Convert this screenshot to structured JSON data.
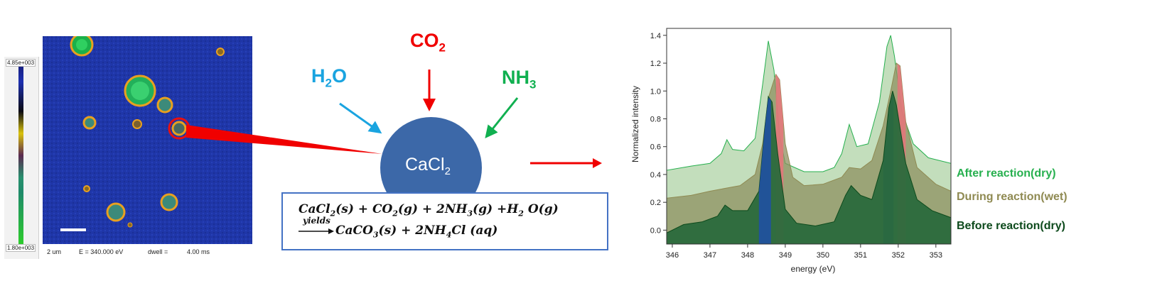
{
  "microscope": {
    "colorbar_max": "4.85e+003",
    "colorbar_min": "1.80e+003",
    "scale_text": "2 um",
    "energy_text": "E =   340.000 eV",
    "dwell_label": "dwell =",
    "dwell_value": "4.00 ms"
  },
  "reaction": {
    "co2": {
      "base": "CO",
      "sub": "2"
    },
    "h2o": {
      "base": "H",
      "sub": "2",
      "tail": "O"
    },
    "nh3": {
      "base": "NH",
      "sub": "3"
    },
    "particle": {
      "base": "CaCl",
      "sub": "2"
    },
    "colors": {
      "co2": "#f00000",
      "h2o": "#1aa4e0",
      "nh3": "#10b050",
      "particle": "#3c68a8",
      "box_border": "#4472c4"
    },
    "equation_line1": {
      "p1": "CaCl",
      "s1": "2",
      "p2": "(s) + CO",
      "s2": "2",
      "p3": "(g) + 2NH",
      "s3": "3",
      "p4": "(g) +H",
      "s4": "2",
      "p5": " O(g)"
    },
    "equation_over": "yields",
    "equation_line2": {
      "p1": "CaCO",
      "s1": "3",
      "p2": "(s) + 2NH",
      "s2": "4",
      "p3": "Cl (aq)"
    }
  },
  "chart_data": {
    "type": "area",
    "xlabel": "energy (eV)",
    "ylabel": "Normalized intensity",
    "xlim": [
      345.85,
      353.4
    ],
    "ylim": [
      -0.1,
      1.45
    ],
    "xticks": [
      346,
      347,
      348,
      349,
      350,
      351,
      352,
      353
    ],
    "yticks": [
      0.0,
      0.2,
      0.4,
      0.6,
      0.8,
      1.0,
      1.2,
      1.4
    ],
    "series": [
      {
        "name": "After reaction(dry)",
        "color": "#27b04f",
        "fill": "#b9d8b0",
        "x": [
          345.85,
          346.5,
          347.0,
          347.3,
          347.45,
          347.6,
          347.9,
          348.2,
          348.4,
          348.55,
          348.7,
          348.85,
          349.0,
          349.5,
          350.0,
          350.3,
          350.5,
          350.7,
          350.9,
          351.2,
          351.5,
          351.7,
          351.8,
          351.9,
          352.1,
          352.4,
          352.8,
          353.4
        ],
        "values": [
          0.43,
          0.46,
          0.48,
          0.55,
          0.65,
          0.58,
          0.57,
          0.66,
          1.05,
          1.36,
          1.15,
          0.68,
          0.48,
          0.42,
          0.42,
          0.45,
          0.55,
          0.76,
          0.6,
          0.62,
          0.92,
          1.32,
          1.4,
          1.25,
          0.85,
          0.62,
          0.52,
          0.48
        ]
      },
      {
        "name": "During reaction(wet)",
        "color": "#8f8a52",
        "fill": "#8e9060",
        "x": [
          345.85,
          346.5,
          347.0,
          347.4,
          347.8,
          348.2,
          348.4,
          348.55,
          348.75,
          348.85,
          349.0,
          349.2,
          349.5,
          350.0,
          350.5,
          350.7,
          351.0,
          351.3,
          351.6,
          351.8,
          351.95,
          352.05,
          352.2,
          352.5,
          353.0,
          353.4
        ],
        "values": [
          0.23,
          0.25,
          0.28,
          0.3,
          0.32,
          0.4,
          0.62,
          0.95,
          1.12,
          1.08,
          0.62,
          0.38,
          0.32,
          0.33,
          0.38,
          0.45,
          0.44,
          0.5,
          0.75,
          1.0,
          1.2,
          1.18,
          0.78,
          0.45,
          0.33,
          0.28
        ]
      },
      {
        "name": "Before reaction(dry)",
        "color": "#0d4a1c",
        "fill": "#2a6a3c",
        "x": [
          345.85,
          346.3,
          346.8,
          347.2,
          347.4,
          347.6,
          348.0,
          348.3,
          348.45,
          348.55,
          348.65,
          348.8,
          349.0,
          349.3,
          349.8,
          350.3,
          350.6,
          350.75,
          351.0,
          351.3,
          351.6,
          351.75,
          351.85,
          351.95,
          352.2,
          352.5,
          352.9,
          353.4
        ],
        "values": [
          -0.02,
          0.04,
          0.06,
          0.1,
          0.18,
          0.14,
          0.14,
          0.28,
          0.72,
          0.96,
          0.92,
          0.55,
          0.15,
          0.05,
          0.03,
          0.06,
          0.25,
          0.32,
          0.25,
          0.22,
          0.5,
          0.88,
          1.0,
          0.9,
          0.48,
          0.22,
          0.14,
          0.09
        ]
      }
    ],
    "highlights": [
      {
        "color": "#1f4fa8",
        "x_range": [
          348.3,
          348.62
        ],
        "series_index": 2
      },
      {
        "color": "#e8747a",
        "x_range": [
          348.75,
          348.95
        ],
        "series_index": 1
      },
      {
        "color": "#1f4fa8",
        "x_range": [
          351.6,
          351.88
        ],
        "series_index": 2
      },
      {
        "color": "#e8747a",
        "x_range": [
          351.98,
          352.2
        ],
        "series_index": 1
      }
    ]
  }
}
